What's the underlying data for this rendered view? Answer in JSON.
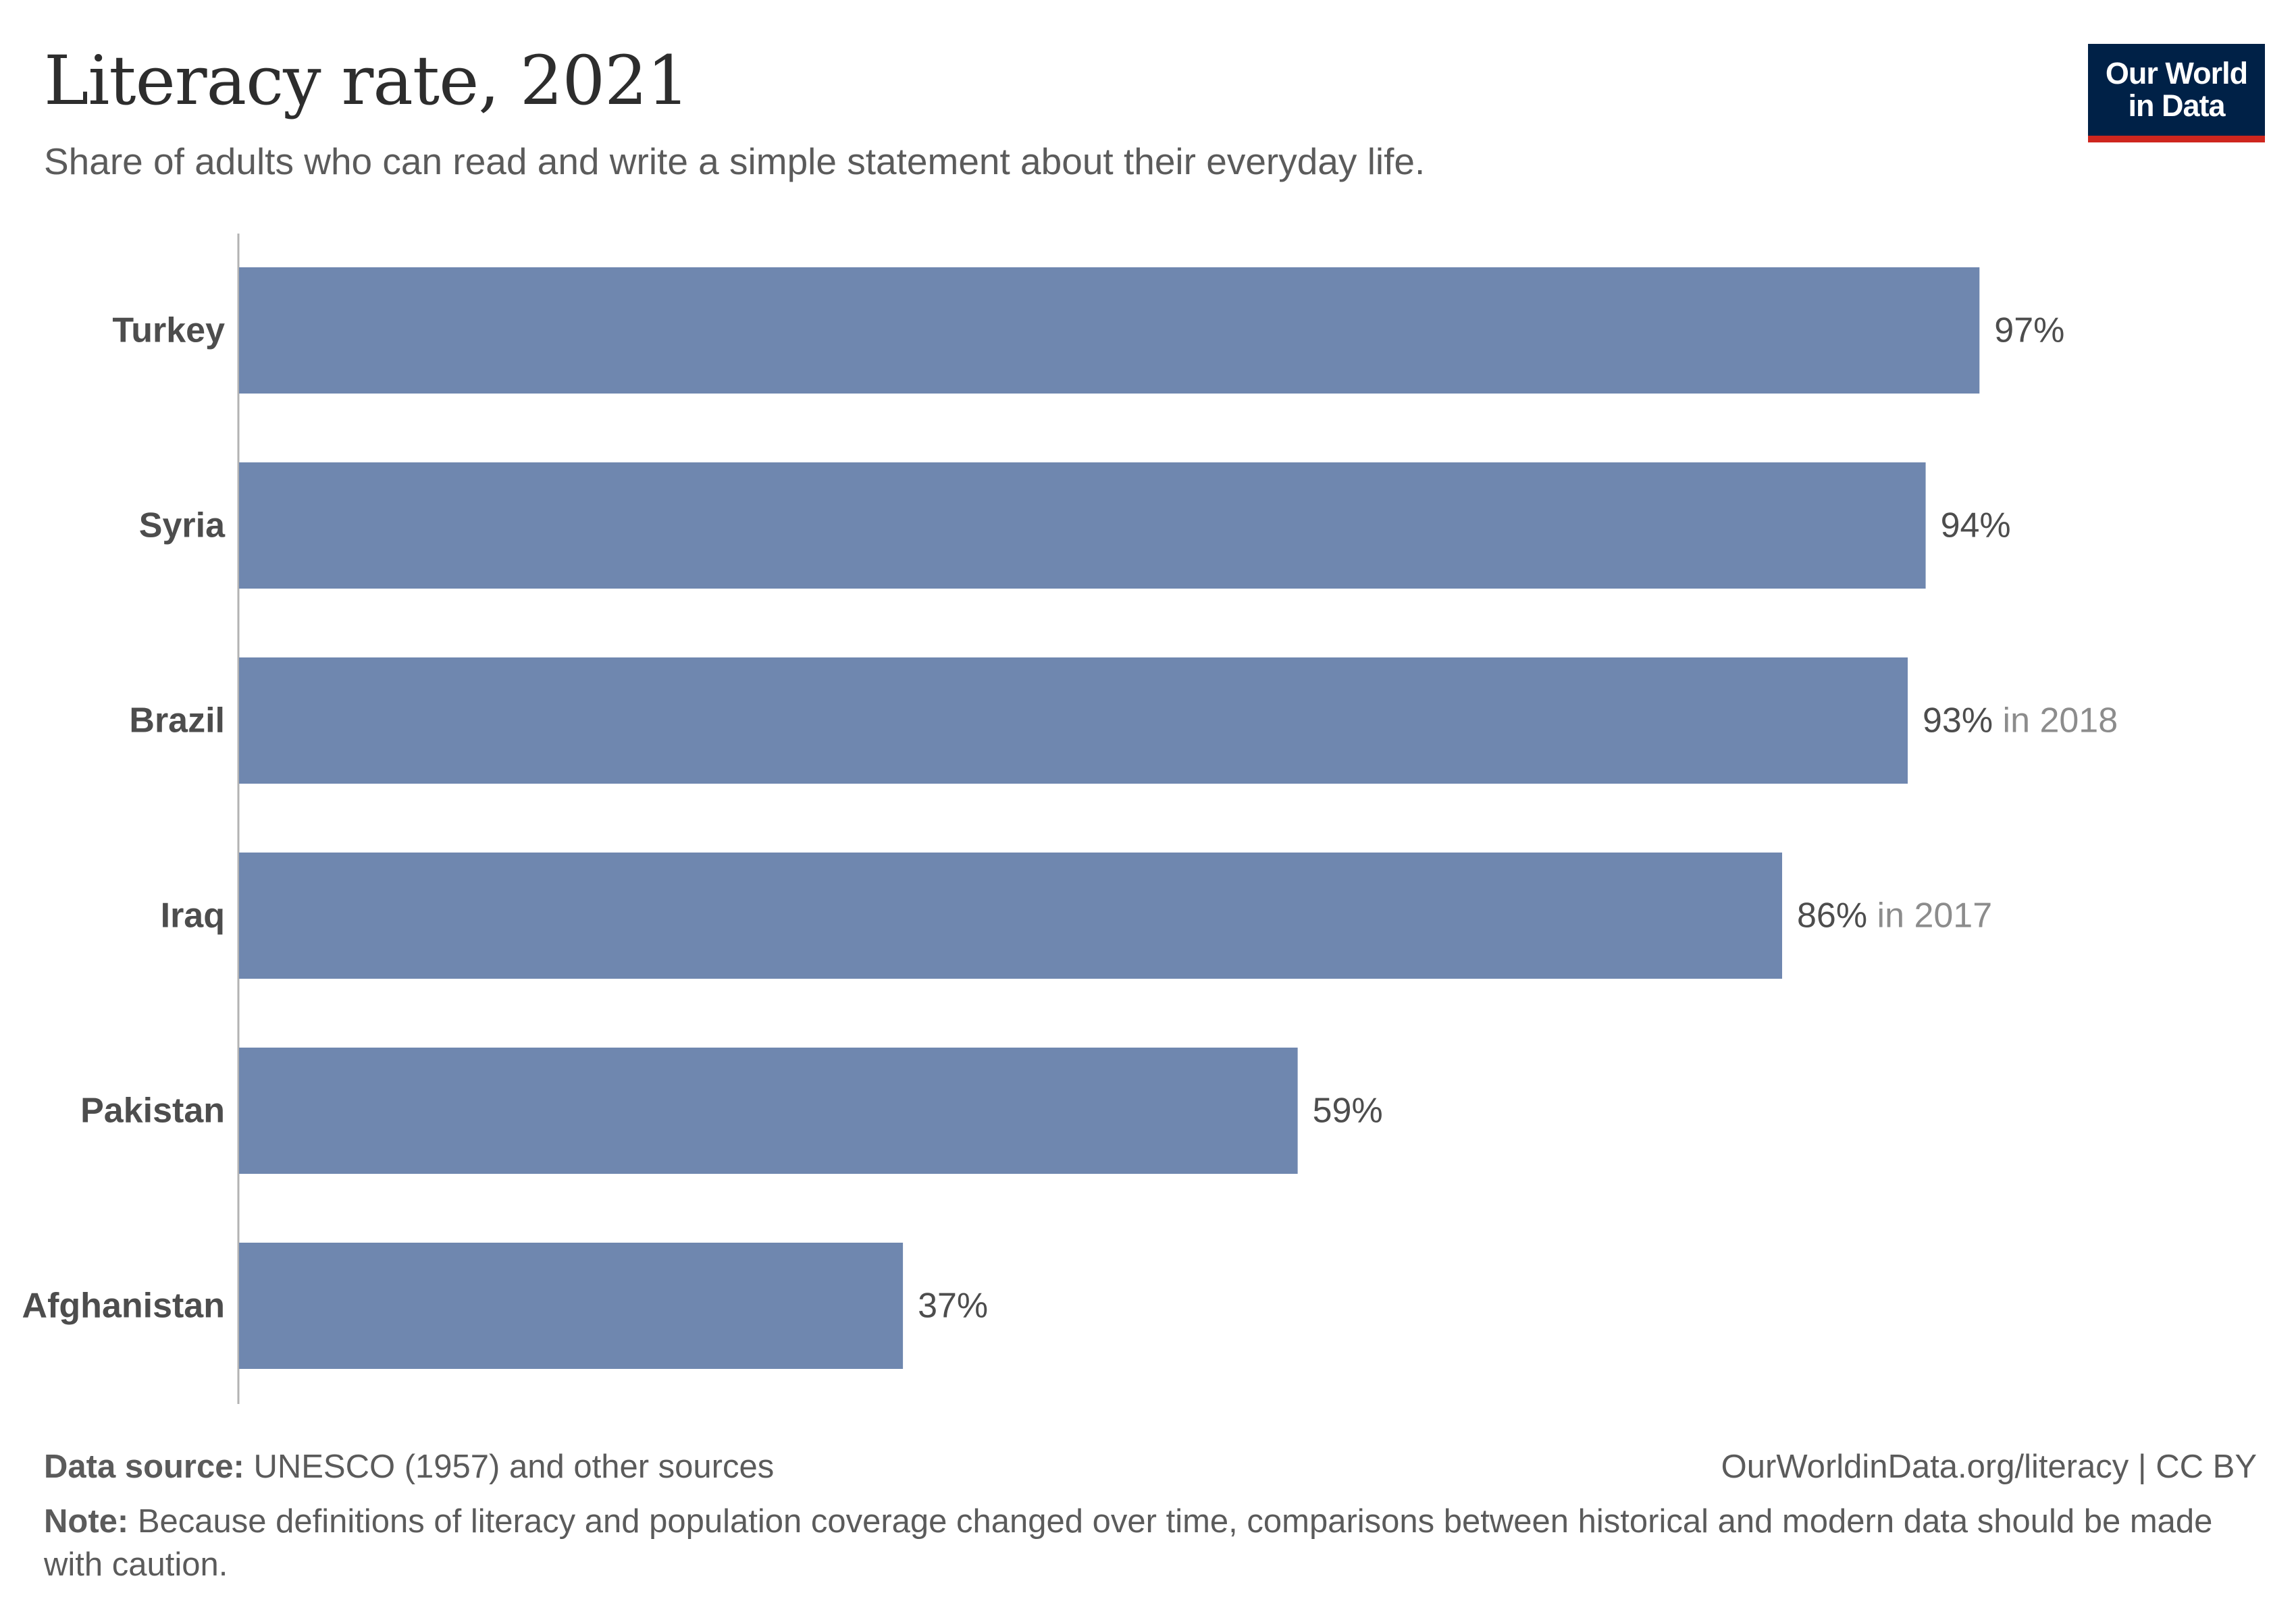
{
  "title": "Literacy rate, 2021",
  "subtitle": "Share of adults who can read and write a simple statement about their everyday life.",
  "logo": {
    "line1": "Our World",
    "line2": "in Data"
  },
  "footer": {
    "source_label": "Data source:",
    "source_text": "UNESCO (1957) and other sources",
    "url_text": "OurWorldinData.org/literacy | CC BY",
    "note_label": "Note:",
    "note_text": "Because definitions of literacy and population coverage changed over time, comparisons between historical and modern data should be made with caution."
  },
  "chart_data": {
    "type": "bar",
    "orientation": "horizontal",
    "title": "Literacy rate, 2021",
    "xlim": [
      0,
      100
    ],
    "grid": false,
    "bar_color": "#6f87af",
    "categories": [
      "Turkey",
      "Syria",
      "Brazil",
      "Iraq",
      "Pakistan",
      "Afghanistan"
    ],
    "values": [
      97,
      94,
      93,
      86,
      59,
      37
    ],
    "value_labels": [
      "97%",
      "94%",
      "93%",
      "86%",
      "59%",
      "37%"
    ],
    "year_notes": [
      "",
      "",
      "in 2018",
      "in 2017",
      "",
      ""
    ]
  }
}
